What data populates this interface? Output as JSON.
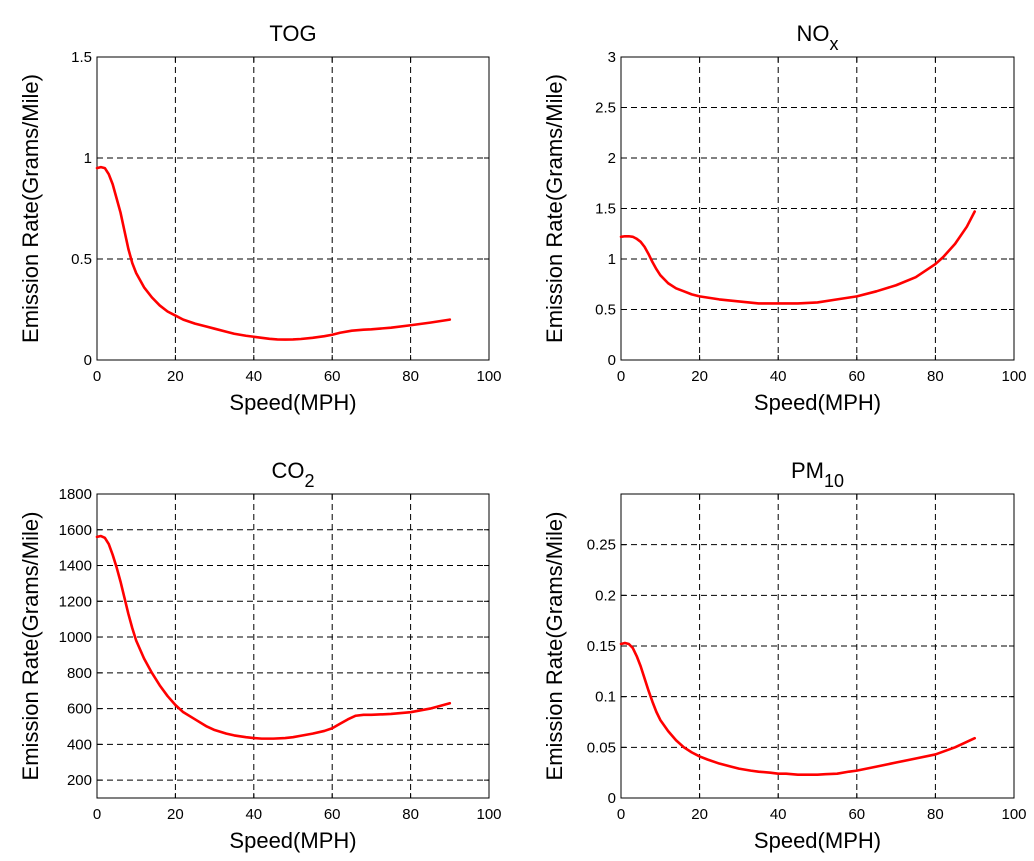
{
  "chart_data": [
    {
      "type": "line",
      "title": "TOG",
      "title_main": "TOG",
      "title_sub": "",
      "xlabel": "Speed(MPH)",
      "ylabel": "Emission Rate(Grams/Mile)",
      "xlim": [
        0,
        100
      ],
      "ylim": [
        0,
        1.5
      ],
      "xticks": [
        0,
        20,
        40,
        60,
        80,
        100
      ],
      "xtick_labels": [
        "0",
        "20",
        "40",
        "60",
        "80",
        "100"
      ],
      "yticks": [
        0,
        0.5,
        1,
        1.5
      ],
      "ytick_labels": [
        "0",
        "0.5",
        "1",
        "1.5"
      ],
      "grid": true,
      "series": [
        {
          "color": "#ff0000",
          "x": [
            0,
            1,
            2,
            3,
            4,
            5,
            6,
            7,
            8,
            9,
            10,
            12,
            14,
            16,
            18,
            20,
            22,
            25,
            28,
            30,
            33,
            35,
            38,
            40,
            42,
            44,
            46,
            48,
            50,
            52,
            55,
            58,
            60,
            62,
            65,
            68,
            70,
            75,
            80,
            85,
            90
          ],
          "y": [
            0.95,
            0.955,
            0.95,
            0.92,
            0.87,
            0.8,
            0.73,
            0.64,
            0.55,
            0.48,
            0.43,
            0.36,
            0.31,
            0.27,
            0.24,
            0.22,
            0.2,
            0.18,
            0.165,
            0.155,
            0.14,
            0.13,
            0.12,
            0.115,
            0.11,
            0.105,
            0.102,
            0.101,
            0.102,
            0.104,
            0.11,
            0.118,
            0.125,
            0.135,
            0.145,
            0.15,
            0.152,
            0.16,
            0.172,
            0.185,
            0.2
          ]
        }
      ]
    },
    {
      "type": "line",
      "title": "NOx",
      "title_main": "NO",
      "title_sub": "x",
      "xlabel": "Speed(MPH)",
      "ylabel": "Emission Rate(Grams/Mile)",
      "xlim": [
        0,
        100
      ],
      "ylim": [
        0,
        3
      ],
      "xticks": [
        0,
        20,
        40,
        60,
        80,
        100
      ],
      "xtick_labels": [
        "0",
        "20",
        "40",
        "60",
        "80",
        "100"
      ],
      "yticks": [
        0,
        0.5,
        1,
        1.5,
        2,
        2.5,
        3
      ],
      "ytick_labels": [
        "0",
        "0.5",
        "1",
        "1.5",
        "2",
        "2.5",
        "3"
      ],
      "grid": true,
      "series": [
        {
          "color": "#ff0000",
          "x": [
            0,
            1,
            2,
            3,
            4,
            5,
            6,
            7,
            8,
            9,
            10,
            12,
            14,
            16,
            18,
            20,
            25,
            30,
            35,
            40,
            45,
            50,
            55,
            60,
            65,
            70,
            75,
            80,
            82,
            85,
            88,
            90
          ],
          "y": [
            1.22,
            1.225,
            1.225,
            1.22,
            1.2,
            1.17,
            1.12,
            1.05,
            0.97,
            0.9,
            0.84,
            0.76,
            0.71,
            0.68,
            0.65,
            0.63,
            0.6,
            0.58,
            0.56,
            0.56,
            0.56,
            0.57,
            0.6,
            0.63,
            0.68,
            0.74,
            0.82,
            0.95,
            1.02,
            1.15,
            1.32,
            1.47
          ]
        }
      ]
    },
    {
      "type": "line",
      "title": "CO2",
      "title_main": "CO",
      "title_sub": "2",
      "xlabel": "Speed(MPH)",
      "ylabel": "Emission Rate(Grams/Mile)",
      "xlim": [
        0,
        100
      ],
      "ylim": [
        100,
        1800
      ],
      "xticks": [
        0,
        20,
        40,
        60,
        80,
        100
      ],
      "xtick_labels": [
        "0",
        "20",
        "40",
        "60",
        "80",
        "100"
      ],
      "yticks": [
        200,
        400,
        600,
        800,
        1000,
        1200,
        1400,
        1600,
        1800
      ],
      "ytick_labels": [
        "200",
        "400",
        "600",
        "800",
        "1000",
        "1200",
        "1400",
        "1600",
        "1800"
      ],
      "grid": true,
      "series": [
        {
          "color": "#ff0000",
          "x": [
            0,
            1,
            2,
            3,
            4,
            5,
            6,
            7,
            8,
            9,
            10,
            12,
            14,
            16,
            18,
            20,
            22,
            25,
            28,
            30,
            33,
            35,
            38,
            40,
            42,
            45,
            48,
            50,
            52,
            55,
            58,
            60,
            62,
            64,
            66,
            68,
            70,
            75,
            80,
            85,
            90
          ],
          "y": [
            1560,
            1565,
            1555,
            1520,
            1460,
            1390,
            1310,
            1220,
            1130,
            1050,
            980,
            880,
            800,
            730,
            670,
            620,
            580,
            540,
            500,
            480,
            460,
            450,
            440,
            435,
            432,
            432,
            435,
            440,
            448,
            460,
            475,
            490,
            515,
            540,
            560,
            565,
            565,
            570,
            580,
            600,
            630
          ]
        }
      ]
    },
    {
      "type": "line",
      "title": "PM10",
      "title_main": "PM",
      "title_sub": "10",
      "xlabel": "Speed(MPH)",
      "ylabel": "Emission Rate(Grams/Mile)",
      "xlim": [
        0,
        100
      ],
      "ylim": [
        0,
        0.3
      ],
      "xticks": [
        0,
        20,
        40,
        60,
        80,
        100
      ],
      "xtick_labels": [
        "0",
        "20",
        "40",
        "60",
        "80",
        "100"
      ],
      "yticks": [
        0,
        0.05,
        0.1,
        0.15,
        0.2,
        0.25
      ],
      "ytick_labels": [
        "0",
        "0.05",
        "0.1",
        "0.15",
        "0.2",
        "0.25"
      ],
      "grid": true,
      "series": [
        {
          "color": "#ff0000",
          "x": [
            0,
            1,
            2,
            3,
            4,
            5,
            6,
            7,
            8,
            9,
            10,
            12,
            14,
            16,
            18,
            20,
            22,
            25,
            28,
            30,
            33,
            35,
            38,
            40,
            42,
            45,
            48,
            50,
            52,
            55,
            58,
            60,
            65,
            70,
            75,
            80,
            85,
            90
          ],
          "y": [
            0.152,
            0.153,
            0.152,
            0.148,
            0.14,
            0.13,
            0.118,
            0.106,
            0.095,
            0.085,
            0.077,
            0.066,
            0.057,
            0.05,
            0.045,
            0.041,
            0.038,
            0.034,
            0.031,
            0.029,
            0.027,
            0.026,
            0.025,
            0.024,
            0.024,
            0.023,
            0.023,
            0.023,
            0.0235,
            0.024,
            0.026,
            0.027,
            0.031,
            0.035,
            0.039,
            0.043,
            0.05,
            0.059
          ]
        }
      ]
    }
  ]
}
